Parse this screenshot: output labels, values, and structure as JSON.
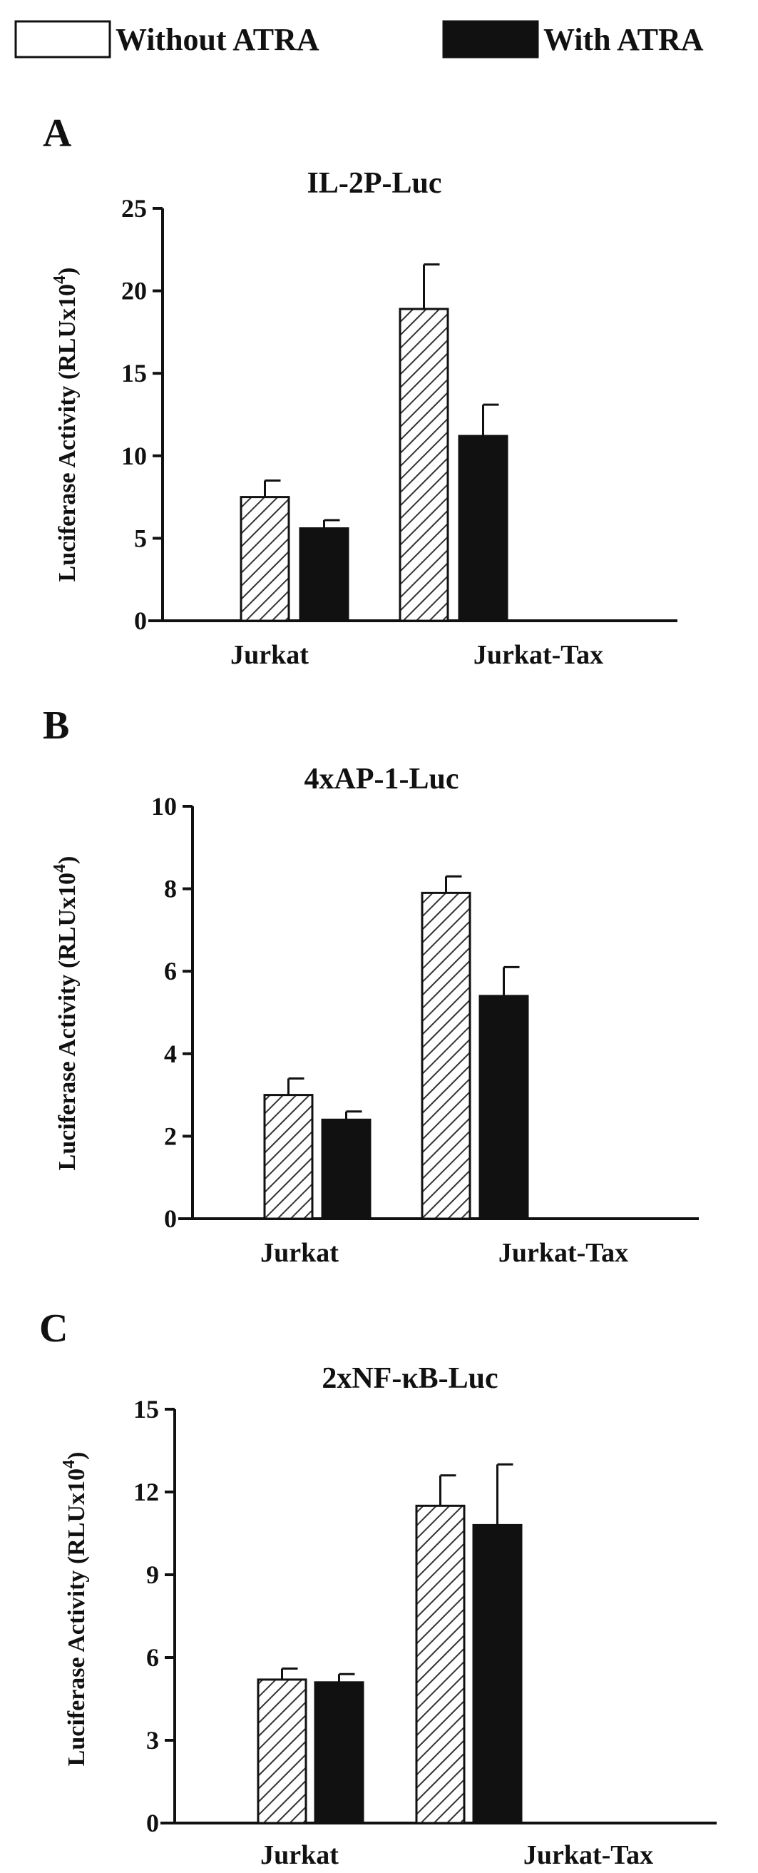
{
  "legend": {
    "items": [
      {
        "label": "Without ATRA",
        "swatch": "open"
      },
      {
        "label": "With ATRA",
        "swatch": "filled"
      }
    ]
  },
  "colors": {
    "filled": "#111111",
    "hatch": "#333333",
    "axis": "#111111"
  },
  "chart_data": [
    {
      "type": "bar",
      "panel": "A",
      "title": "IL-2P-Luc",
      "ylabel": "Luciferase Activity (RLUx10^4)",
      "xlabel": "",
      "ylim": [
        0,
        25
      ],
      "yticks": [
        0,
        5,
        10,
        15,
        20,
        25
      ],
      "categories": [
        "Jurkat",
        "Jurkat-Tax"
      ],
      "series": [
        {
          "values": [
            7.5,
            18.9
          ],
          "errors": [
            1.0,
            2.7
          ],
          "style": "hatched"
        },
        {
          "values": [
            5.6,
            11.2
          ],
          "errors": [
            0.5,
            1.9
          ],
          "style": "filled"
        }
      ],
      "grid": false
    },
    {
      "type": "bar",
      "panel": "B",
      "title": "4xAP-1-Luc",
      "ylabel": "Luciferase Activity (RLUx10^4)",
      "xlabel": "",
      "ylim": [
        0,
        10
      ],
      "yticks": [
        0,
        2,
        4,
        6,
        8,
        10
      ],
      "categories": [
        "Jurkat",
        "Jurkat-Tax"
      ],
      "series": [
        {
          "values": [
            3.0,
            7.9
          ],
          "errors": [
            0.4,
            0.4
          ],
          "style": "hatched"
        },
        {
          "values": [
            2.4,
            5.4
          ],
          "errors": [
            0.2,
            0.7
          ],
          "style": "filled"
        }
      ],
      "grid": false
    },
    {
      "type": "bar",
      "panel": "C",
      "title": "2xNF-κB-Luc",
      "ylabel": "Luciferase Activity (RLUx10^4)",
      "xlabel": "",
      "ylim": [
        0,
        15
      ],
      "yticks": [
        0,
        3,
        6,
        9,
        12,
        15
      ],
      "categories": [
        "Jurkat",
        "Jurkat-Tax"
      ],
      "series": [
        {
          "values": [
            5.2,
            11.5
          ],
          "errors": [
            0.4,
            1.1
          ],
          "style": "hatched"
        },
        {
          "values": [
            5.1,
            10.8
          ],
          "errors": [
            0.3,
            2.2
          ],
          "style": "filled"
        }
      ],
      "grid": false
    }
  ]
}
